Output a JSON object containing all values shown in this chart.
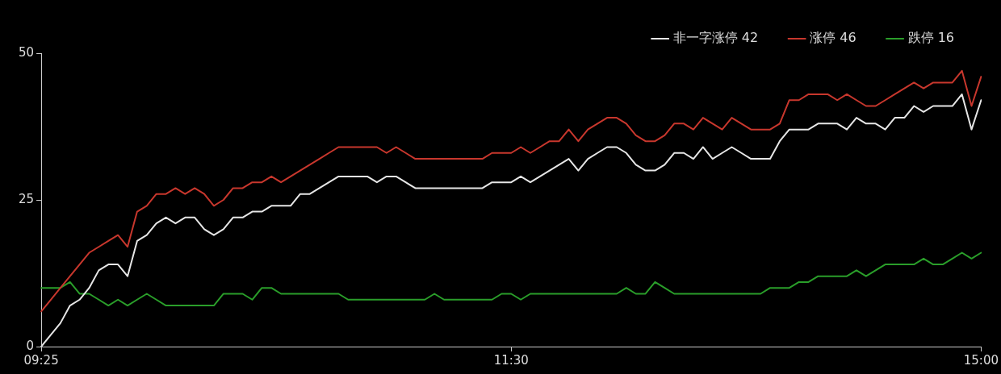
{
  "chart_data": {
    "type": "line",
    "categories": [
      "09:25",
      null,
      null,
      null,
      null,
      null,
      null,
      null,
      null,
      null,
      null,
      null,
      null,
      null,
      null,
      null,
      null,
      null,
      null,
      null,
      null,
      null,
      null,
      null,
      null,
      null,
      null,
      null,
      null,
      null,
      null,
      null,
      null,
      null,
      null,
      null,
      null,
      null,
      null,
      null,
      null,
      null,
      null,
      null,
      null,
      null,
      null,
      null,
      null,
      "11:30",
      null,
      null,
      null,
      null,
      null,
      null,
      null,
      null,
      null,
      null,
      null,
      null,
      null,
      null,
      null,
      null,
      null,
      null,
      null,
      null,
      null,
      null,
      null,
      null,
      null,
      null,
      null,
      null,
      null,
      null,
      null,
      null,
      null,
      null,
      null,
      null,
      null,
      null,
      null,
      null,
      null,
      null,
      null,
      null,
      null,
      null,
      null,
      null,
      "15:00"
    ],
    "series": [
      {
        "name": "非一字涨停 42",
        "color": "#e6e6e6",
        "values": [
          0,
          2,
          4,
          7,
          8,
          10,
          13,
          14,
          14,
          12,
          18,
          19,
          21,
          22,
          21,
          22,
          22,
          20,
          19,
          20,
          22,
          22,
          23,
          23,
          24,
          24,
          24,
          26,
          26,
          27,
          28,
          29,
          29,
          29,
          29,
          28,
          29,
          29,
          28,
          27,
          27,
          27,
          27,
          27,
          27,
          27,
          27,
          28,
          28,
          28,
          29,
          28,
          29,
          30,
          31,
          32,
          30,
          32,
          33,
          34,
          34,
          33,
          31,
          30,
          30,
          31,
          33,
          33,
          32,
          34,
          32,
          33,
          34,
          33,
          32,
          32,
          32,
          35,
          37,
          37,
          37,
          38,
          38,
          38,
          37,
          39,
          38,
          38,
          37,
          39,
          39,
          41,
          40,
          41,
          41,
          41,
          43,
          37,
          42
        ]
      },
      {
        "name": "涨停 46",
        "color": "#c8372d",
        "values": [
          6,
          8,
          10,
          12,
          14,
          16,
          17,
          18,
          19,
          17,
          23,
          24,
          26,
          26,
          27,
          26,
          27,
          26,
          24,
          25,
          27,
          27,
          28,
          28,
          29,
          28,
          29,
          30,
          31,
          32,
          33,
          34,
          34,
          34,
          34,
          34,
          33,
          34,
          33,
          32,
          32,
          32,
          32,
          32,
          32,
          32,
          32,
          33,
          33,
          33,
          34,
          33,
          34,
          35,
          35,
          37,
          35,
          37,
          38,
          39,
          39,
          38,
          36,
          35,
          35,
          36,
          38,
          38,
          37,
          39,
          38,
          37,
          39,
          38,
          37,
          37,
          37,
          38,
          42,
          42,
          43,
          43,
          43,
          42,
          43,
          42,
          41,
          41,
          42,
          43,
          44,
          45,
          44,
          45,
          45,
          45,
          47,
          41,
          46
        ]
      },
      {
        "name": "跌停 16",
        "color": "#2a9e2a",
        "values": [
          10,
          10,
          10,
          11,
          9,
          9,
          8,
          7,
          8,
          7,
          8,
          9,
          8,
          7,
          7,
          7,
          7,
          7,
          7,
          9,
          9,
          9,
          8,
          10,
          10,
          9,
          9,
          9,
          9,
          9,
          9,
          9,
          8,
          8,
          8,
          8,
          8,
          8,
          8,
          8,
          8,
          9,
          8,
          8,
          8,
          8,
          8,
          8,
          9,
          9,
          8,
          9,
          9,
          9,
          9,
          9,
          9,
          9,
          9,
          9,
          9,
          10,
          9,
          9,
          11,
          10,
          9,
          9,
          9,
          9,
          9,
          9,
          9,
          9,
          9,
          9,
          10,
          10,
          10,
          11,
          11,
          12,
          12,
          12,
          12,
          13,
          12,
          13,
          14,
          14,
          14,
          14,
          15,
          14,
          14,
          15,
          16,
          15,
          16
        ]
      }
    ],
    "ylim": [
      0,
      50
    ],
    "yticks": [
      0,
      25,
      50
    ],
    "grid": false,
    "legend": "top right",
    "marker": "none",
    "line_style": "solid"
  }
}
